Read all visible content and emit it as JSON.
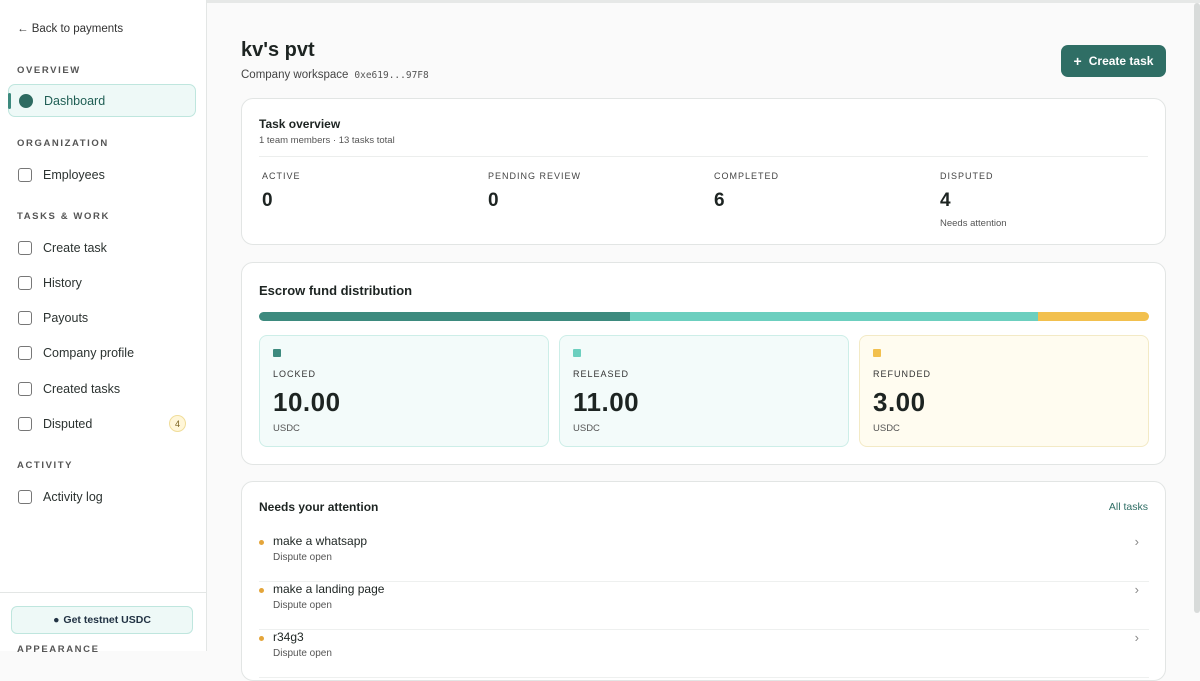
{
  "sidebar": {
    "back": "Back to payments",
    "sections": [
      {
        "title": "OVERVIEW",
        "items": [
          {
            "label": "Dashboard"
          }
        ]
      },
      {
        "title": "ORGANIZATION",
        "items": [
          {
            "label": "Employees"
          }
        ]
      },
      {
        "title": "TASKS & WORK",
        "items": [
          {
            "label": "Create task"
          },
          {
            "label": "History"
          },
          {
            "label": "Payouts"
          },
          {
            "label": "Company profile"
          },
          {
            "label": "Created tasks"
          },
          {
            "label": "Disputed",
            "badge": "4"
          }
        ]
      },
      {
        "title": "ACTIVITY",
        "items": [
          {
            "label": "Activity log"
          }
        ]
      }
    ],
    "testnet_button": "Get testnet USDC",
    "appearance": "APPEARANCE"
  },
  "header": {
    "title": "kv's pvt",
    "subtitle": "Company workspace",
    "address": "0xe619...97F8",
    "button": "Create task"
  },
  "task_overview": {
    "title": "Task overview",
    "meta": "1 team members · 13 tasks total",
    "stats": [
      {
        "label": "ACTIVE",
        "value": "0"
      },
      {
        "label": "PENDING REVIEW",
        "value": "0"
      },
      {
        "label": "COMPLETED",
        "value": "6"
      },
      {
        "label": "DISPUTED",
        "value": "4",
        "note": "Needs attention"
      }
    ]
  },
  "escrow": {
    "title": "Escrow fund distribution",
    "items": [
      {
        "label": "LOCKED",
        "amount": "10.00",
        "unit": "USDC",
        "color": "#3d8a7e"
      },
      {
        "label": "RELEASED",
        "amount": "11.00",
        "unit": "USDC",
        "color": "#6ccfbf"
      },
      {
        "label": "REFUNDED",
        "amount": "3.00",
        "unit": "USDC",
        "color": "#f2c04e"
      }
    ]
  },
  "attention": {
    "title": "Needs your attention",
    "link": "All tasks",
    "items": [
      {
        "title": "make a whatsapp",
        "status": "Dispute open"
      },
      {
        "title": "make a landing page",
        "status": "Dispute open"
      },
      {
        "title": "r34g3",
        "status": "Dispute open"
      }
    ]
  }
}
